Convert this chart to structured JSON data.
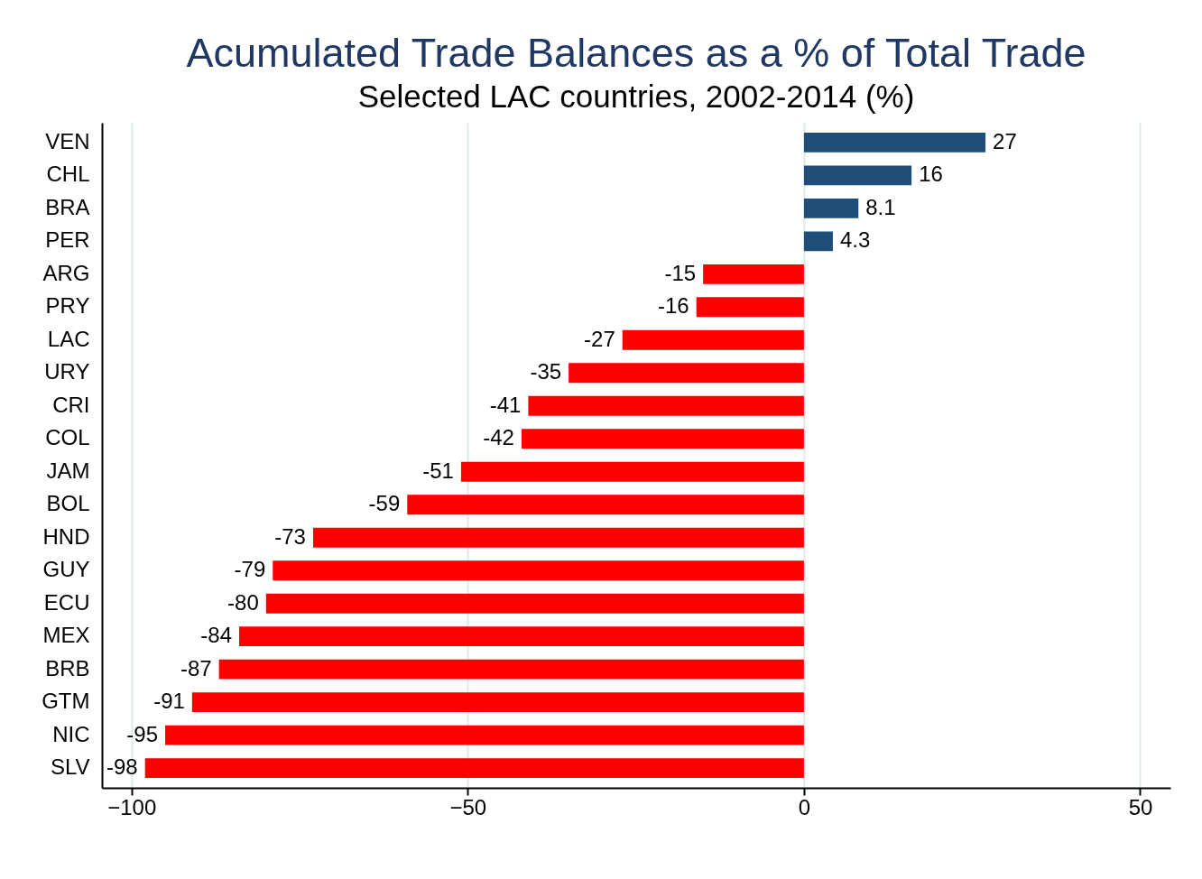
{
  "chart_data": {
    "type": "bar",
    "orientation": "horizontal",
    "title": "Acumulated Trade Balances as a % of Total Trade",
    "subtitle": "Selected LAC countries, 2002-2014 (%)",
    "categories": [
      "VEN",
      "CHL",
      "BRA",
      "PER",
      "ARG",
      "PRY",
      "LAC",
      "URY",
      "CRI",
      "COL",
      "JAM",
      "BOL",
      "HND",
      "GUY",
      "ECU",
      "MEX",
      "BRB",
      "GTM",
      "NIC",
      "SLV"
    ],
    "values": [
      27,
      16,
      8.1,
      4.3,
      -15,
      -16,
      -27,
      -35,
      -41,
      -42,
      -51,
      -59,
      -73,
      -79,
      -80,
      -84,
      -87,
      -91,
      -95,
      -98
    ],
    "colors": [
      "#1f4e79",
      "#1f4e79",
      "#1f4e79",
      "#1f4e79",
      "#ff0000",
      "#ff0000",
      "#ff0000",
      "#ff0000",
      "#ff0000",
      "#ff0000",
      "#ff0000",
      "#ff0000",
      "#ff0000",
      "#ff0000",
      "#ff0000",
      "#ff0000",
      "#ff0000",
      "#ff0000",
      "#ff0000",
      "#ff0000"
    ],
    "xlim": [
      -104.4,
      54.5
    ],
    "xticks": [
      -100,
      -50,
      0,
      50
    ],
    "grid": "x",
    "data_labels": true
  }
}
